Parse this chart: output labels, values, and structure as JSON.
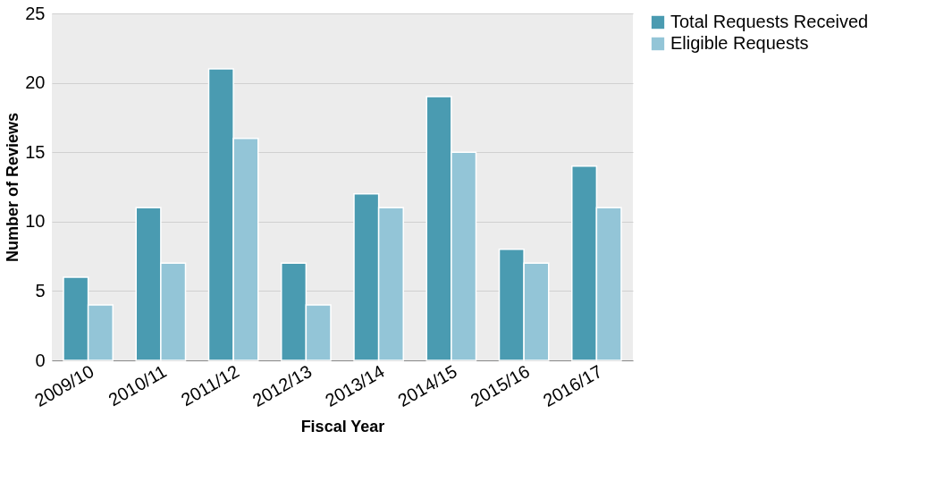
{
  "chart_data": {
    "type": "bar",
    "xlabel": "Fiscal Year",
    "ylabel": "Number of Reviews",
    "categories": [
      "2009/10",
      "2010/11",
      "2011/12",
      "2012/13",
      "2013/14",
      "2014/15",
      "2015/16",
      "2016/17"
    ],
    "series": [
      {
        "name": "Total Requests Received",
        "color": "#4a9bb1",
        "values": [
          6,
          11,
          21,
          7,
          12,
          19,
          8,
          14
        ]
      },
      {
        "name": "Eligible Requests",
        "color": "#93c5d7",
        "values": [
          4,
          7,
          16,
          4,
          11,
          15,
          7,
          11
        ]
      }
    ],
    "ylim": [
      0,
      25
    ],
    "yticks": [
      0,
      5,
      10,
      15,
      20,
      25
    ],
    "grid": "y",
    "legend": "right"
  }
}
